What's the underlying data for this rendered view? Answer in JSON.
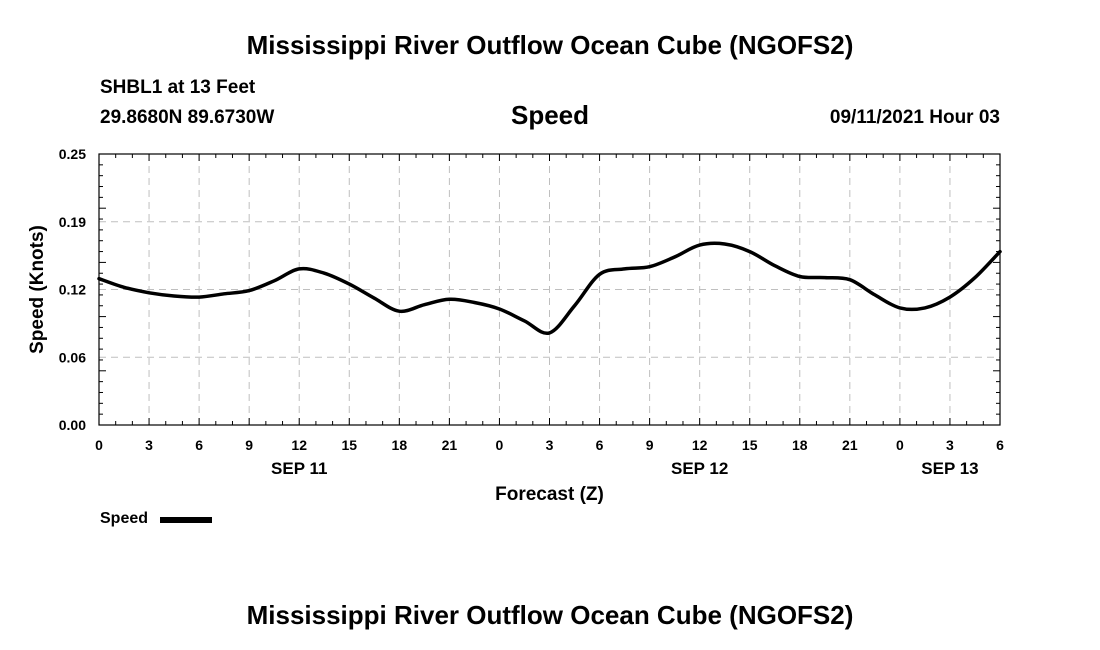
{
  "header": {
    "title_top": "Mississippi River Outflow Ocean Cube (NGOFS2)",
    "station": "SHBL1 at 13 Feet",
    "coords": "29.8680N  89.6730W",
    "plot_name": "Speed",
    "datetime": "09/11/2021 Hour 03"
  },
  "footer": {
    "title_bottom": "Mississippi River Outflow Ocean Cube (NGOFS2)"
  },
  "legend": {
    "label": "Speed"
  },
  "colors": {
    "line": "#000000",
    "grid": "#bfbfbf"
  },
  "chart_data": {
    "type": "line",
    "title": "Speed",
    "xlabel": "Forecast (Z)",
    "ylabel": "Speed (Knots)",
    "ylim": [
      0,
      0.25
    ],
    "xlim": [
      0,
      54
    ],
    "grid": true,
    "x_tick_values": [
      0,
      3,
      6,
      9,
      12,
      15,
      18,
      21,
      24,
      27,
      30,
      33,
      36,
      39,
      42,
      45,
      48,
      51,
      54
    ],
    "x_tick_labels": [
      "0",
      "3",
      "6",
      "9",
      "12",
      "15",
      "18",
      "21",
      "0",
      "3",
      "6",
      "9",
      "12",
      "15",
      "18",
      "21",
      "0",
      "3",
      "6"
    ],
    "y_tick_values": [
      0,
      0.0625,
      0.125,
      0.1875,
      0.25
    ],
    "y_tick_labels": [
      "0.00",
      "0.06",
      "0.12",
      "0.19",
      "0.25"
    ],
    "date_labels": [
      {
        "hour": 12,
        "label": "SEP 11"
      },
      {
        "hour": 36,
        "label": "SEP 12"
      },
      {
        "hour": 51,
        "label": "SEP 13"
      }
    ],
    "series": [
      {
        "name": "Speed",
        "x": [
          0,
          1.5,
          3,
          4.5,
          6,
          7.5,
          9,
          10.5,
          12,
          13.5,
          15,
          16.5,
          18,
          19.5,
          21,
          22.5,
          24,
          25.5,
          27,
          28.5,
          30,
          31.5,
          33,
          34.5,
          36,
          37.5,
          39,
          40.5,
          42,
          43.5,
          45,
          46.5,
          48,
          49.5,
          51,
          52.5,
          54
        ],
        "y": [
          0.135,
          0.127,
          0.122,
          0.119,
          0.118,
          0.121,
          0.124,
          0.133,
          0.144,
          0.14,
          0.13,
          0.117,
          0.105,
          0.111,
          0.116,
          0.113,
          0.107,
          0.096,
          0.085,
          0.11,
          0.139,
          0.144,
          0.146,
          0.155,
          0.166,
          0.167,
          0.16,
          0.147,
          0.137,
          0.136,
          0.134,
          0.12,
          0.108,
          0.108,
          0.118,
          0.136,
          0.16
        ]
      }
    ]
  }
}
